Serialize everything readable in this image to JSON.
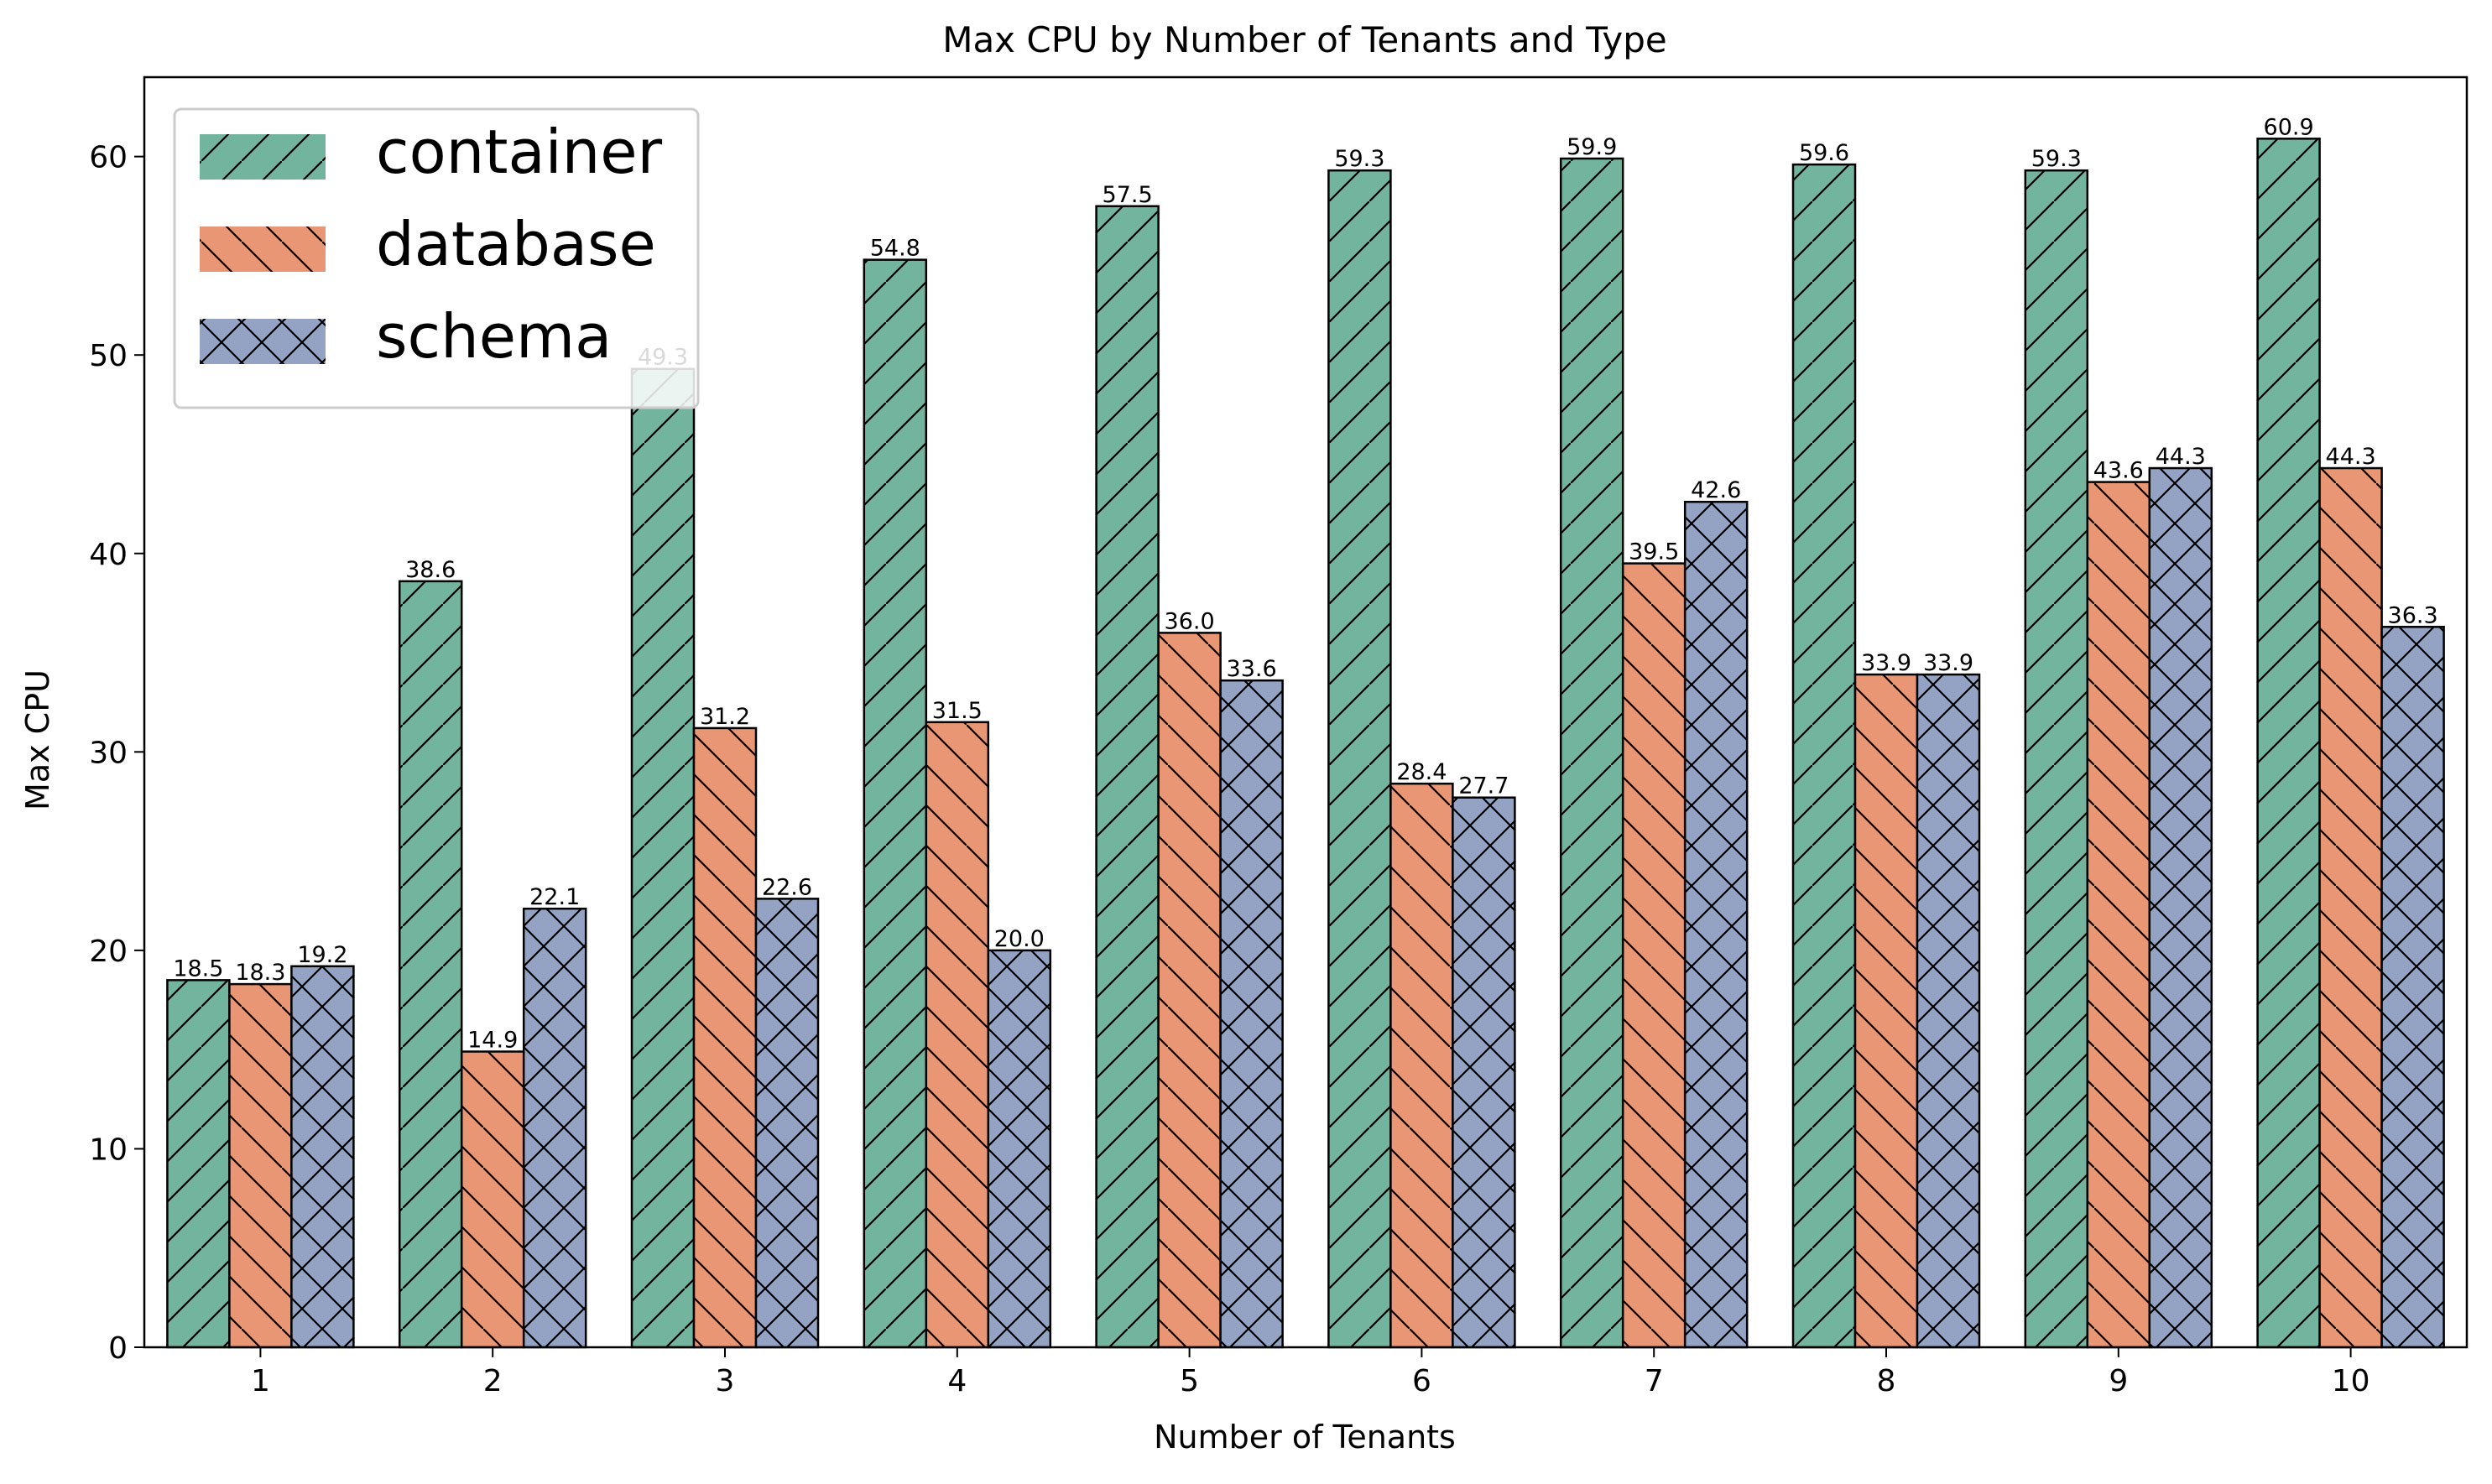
{
  "chart_data": {
    "type": "bar",
    "title": "Max CPU by Number of Tenants and Type",
    "xlabel": "Number of Tenants",
    "ylabel": "Max CPU",
    "categories": [
      "1",
      "2",
      "3",
      "4",
      "5",
      "6",
      "7",
      "8",
      "9",
      "10"
    ],
    "ylim": [
      0,
      64
    ],
    "yticks": [
      0,
      10,
      20,
      30,
      40,
      50,
      60
    ],
    "grid": false,
    "legend_position": "top-left",
    "series": [
      {
        "name": "container",
        "color": "#72b49e",
        "hatch": "/",
        "values": [
          18.5,
          38.6,
          49.3,
          54.8,
          57.5,
          59.3,
          59.9,
          59.6,
          59.3,
          60.9
        ],
        "labels": [
          "18.5",
          "38.6",
          "49.3",
          "54.8",
          "57.5",
          "59.3",
          "59.9",
          "59.6",
          "59.3",
          "60.9"
        ]
      },
      {
        "name": "database",
        "color": "#e89674",
        "hatch": "\\",
        "values": [
          18.3,
          14.9,
          31.2,
          31.5,
          36.0,
          28.4,
          39.5,
          33.9,
          43.6,
          44.3
        ],
        "labels": [
          "18.3",
          "14.9",
          "31.2",
          "31.5",
          "36.0",
          "28.4",
          "39.5",
          "33.9",
          "43.6",
          "44.3"
        ]
      },
      {
        "name": "schema",
        "color": "#94a3c4",
        "hatch": "x",
        "values": [
          19.2,
          22.1,
          22.6,
          20.0,
          33.6,
          27.7,
          42.6,
          33.9,
          44.3,
          36.3
        ],
        "labels": [
          "19.2",
          "22.1",
          "22.6",
          "20.0",
          "33.6",
          "27.7",
          "42.6",
          "33.9",
          "44.3",
          "36.3"
        ]
      }
    ]
  }
}
